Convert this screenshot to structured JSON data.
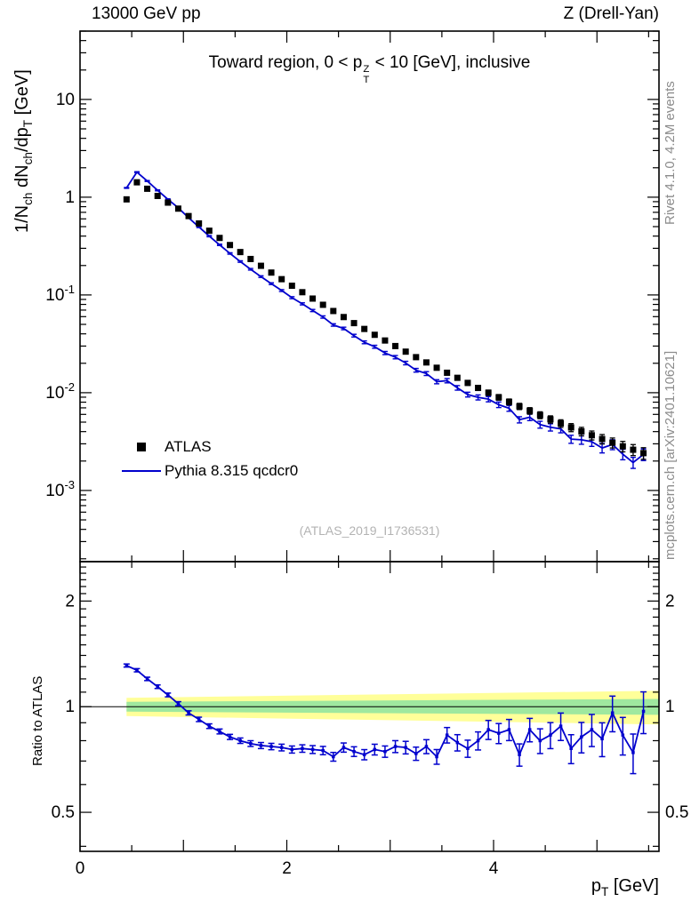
{
  "meta": {
    "top_left_title": "13000 GeV pp",
    "top_right_title": "Z (Drell-Yan)",
    "watermark": "(ATLAS_2019_I1736531)",
    "side_note_top": "Rivet 4.1.0,  4.2M events",
    "side_note_bottom": "mcplots.cern.ch [arXiv:2401.10621]"
  },
  "legend": {
    "data_label": "ATLAS",
    "mc_label": "Pythia 8.315 qcdcr0"
  },
  "titles": {
    "inner_title_rich": [
      [
        "n",
        "Toward region, 0 < p"
      ],
      [
        "supsub",
        "Z",
        "T"
      ],
      [
        "n",
        " < 10 [GeV], inclusive"
      ]
    ],
    "ylabel_top_rich": [
      [
        "n",
        "1/N"
      ],
      [
        "sub",
        "ch"
      ],
      [
        "n",
        " dN"
      ],
      [
        "sub",
        "ch"
      ],
      [
        "n",
        "/dp"
      ],
      [
        "sub",
        "T"
      ],
      [
        "n",
        " [GeV]"
      ]
    ],
    "ylabel_ratio": "Ratio to ATLAS",
    "xlabel_rich": [
      [
        "n",
        "p"
      ],
      [
        "sub",
        "T"
      ],
      [
        "n",
        " [GeV]"
      ]
    ]
  },
  "chart_data": {
    "type": "line",
    "title": "Toward region, 0 < pT(Z) < 10 [GeV], inclusive",
    "xlabel": "pT [GeV]",
    "ylabel_top": "1/Nch dNch/dpT [GeV]",
    "ylabel_ratio": "Ratio to ATLAS",
    "xlim": [
      0,
      5.6
    ],
    "ylim_top": [
      0.000187,
      50
    ],
    "ylim_ratio": [
      0.387,
      2.59
    ],
    "y_scale_top": "log",
    "y_scale_ratio": "log",
    "grid": false,
    "legend_position": "left-middle",
    "x": [
      0.45,
      0.55,
      0.65,
      0.75,
      0.85,
      0.95,
      1.05,
      1.15,
      1.25,
      1.35,
      1.45,
      1.55,
      1.65,
      1.75,
      1.85,
      1.95,
      2.05,
      2.15,
      2.25,
      2.35,
      2.45,
      2.55,
      2.65,
      2.75,
      2.85,
      2.95,
      3.05,
      3.15,
      3.25,
      3.35,
      3.45,
      3.55,
      3.65,
      3.75,
      3.85,
      3.95,
      4.05,
      4.15,
      4.25,
      4.35,
      4.45,
      4.55,
      4.65,
      4.75,
      4.85,
      4.95,
      5.05,
      5.15,
      5.25,
      5.35,
      5.45
    ],
    "series": [
      {
        "name": "ATLAS",
        "style": "black-square-markers",
        "values": [
          0.95,
          1.42,
          1.22,
          1.03,
          0.88,
          0.764,
          0.641,
          0.539,
          0.454,
          0.383,
          0.324,
          0.2746,
          0.2332,
          0.1987,
          0.1694,
          0.145,
          0.1242,
          0.1067,
          0.0918,
          0.0793,
          0.0685,
          0.0594,
          0.0515,
          0.0449,
          0.0391,
          0.0342,
          0.03,
          0.0263,
          0.0231,
          0.0204,
          0.018,
          0.016,
          0.0142,
          0.0126,
          0.0112,
          0.01,
          0.00898,
          0.00806,
          0.00725,
          0.00653,
          0.0059,
          0.00534,
          0.00485,
          0.00441,
          0.00402,
          0.00367,
          0.00336,
          0.00308,
          0.00283,
          0.00261,
          0.00241
        ]
      },
      {
        "name": "Pythia 8.315 qcdcr0",
        "style": "blue-line",
        "ratio_to_atlas": [
          1.31,
          1.27,
          1.2,
          1.14,
          1.08,
          1.02,
          0.96,
          0.92,
          0.88,
          0.85,
          0.82,
          0.8,
          0.785,
          0.775,
          0.77,
          0.765,
          0.755,
          0.76,
          0.755,
          0.75,
          0.72,
          0.765,
          0.745,
          0.73,
          0.755,
          0.745,
          0.77,
          0.765,
          0.735,
          0.77,
          0.72,
          0.83,
          0.79,
          0.76,
          0.8,
          0.86,
          0.84,
          0.86,
          0.73,
          0.86,
          0.8,
          0.83,
          0.88,
          0.76,
          0.82,
          0.86,
          0.81,
          0.96,
          0.83,
          0.74,
          0.97
        ]
      }
    ],
    "rel_err": [
      0.0101,
      0.0107,
      0.0112,
      0.0118,
      0.0124,
      0.0131,
      0.0138,
      0.0145,
      0.0153,
      0.0161,
      0.017,
      0.0179,
      0.0189,
      0.0199,
      0.0209,
      0.022,
      0.0232,
      0.0245,
      0.0258,
      0.0272,
      0.0286,
      0.0301,
      0.0317,
      0.0334,
      0.0352,
      0.0371,
      0.0391,
      0.0412,
      0.0434,
      0.0457,
      0.0481,
      0.0507,
      0.0534,
      0.0562,
      0.0592,
      0.0624,
      0.0657,
      0.0692,
      0.0729,
      0.0768,
      0.0809,
      0.0852,
      0.0898,
      0.0946,
      0.0996,
      0.105,
      0.1106,
      0.1165,
      0.1227,
      0.1292,
      0.1361
    ],
    "ratio_band": {
      "x_start": 0.45,
      "x_end": 5.6,
      "outer_half_start": 0.06,
      "outer_half_end": 0.11,
      "inner_half_start": 0.032,
      "inner_half_end": 0.052
    },
    "x_ticks_labeled": [
      {
        "v": 0,
        "l": "0"
      },
      {
        "v": 2,
        "l": "2"
      },
      {
        "v": 4,
        "l": "4"
      }
    ],
    "y_ticks_top": [
      {
        "v": 10,
        "m": "10"
      },
      {
        "v": 1,
        "m": "1"
      },
      {
        "v": 0.1,
        "m": "10",
        "e": "-1"
      },
      {
        "v": 0.01,
        "m": "10",
        "e": "-2"
      },
      {
        "v": 0.001,
        "m": "10",
        "e": "-3"
      }
    ],
    "y_ticks_ratio": [
      {
        "v": 2,
        "l": "2"
      },
      {
        "v": 1,
        "l": "1"
      },
      {
        "v": 0.5,
        "l": "0.5"
      }
    ],
    "colors": {
      "mc_line": "#0000cd",
      "band_outer": "#ffff99",
      "band_inner": "#9fe89f",
      "marker": "#000000"
    }
  }
}
